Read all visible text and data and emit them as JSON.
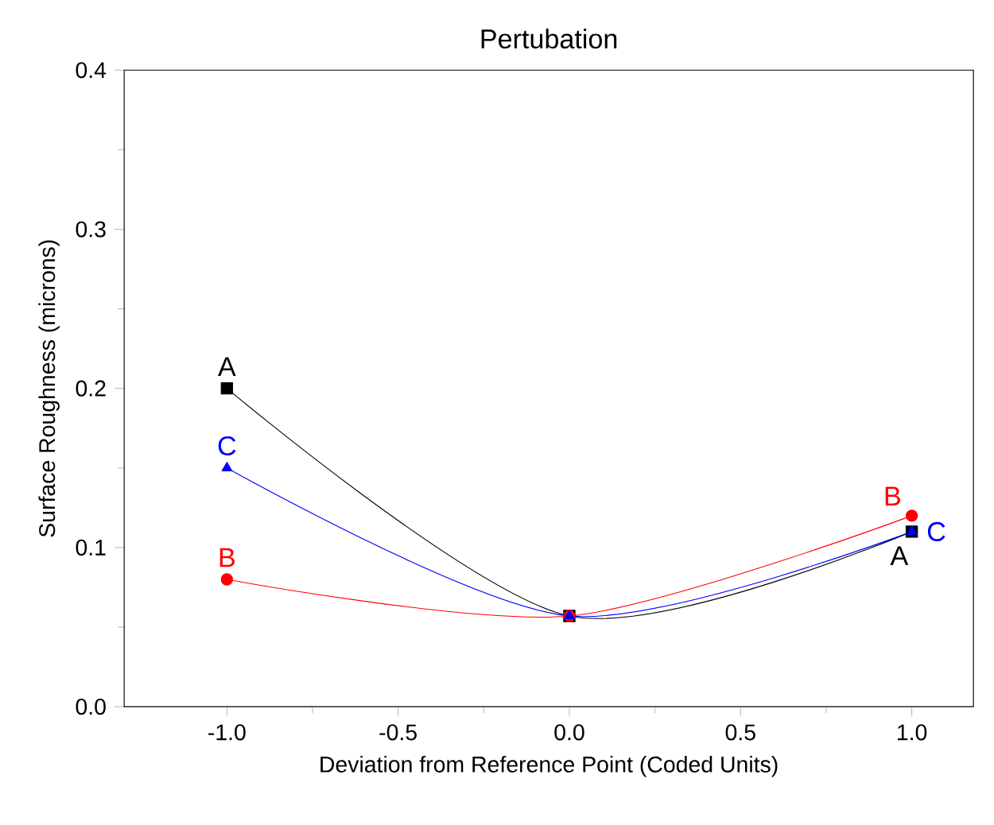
{
  "chart_data": {
    "type": "line",
    "title": "Pertubation",
    "xlabel": "Deviation from Reference Point (Coded Units)",
    "ylabel": "Surface Roughness (microns)",
    "x": [
      -1,
      0,
      1
    ],
    "series": [
      {
        "name": "A",
        "color": "#000000",
        "marker": "square",
        "values": [
          0.2,
          0.057,
          0.11
        ]
      },
      {
        "name": "B",
        "color": "#ff0000",
        "marker": "circle",
        "values": [
          0.08,
          0.057,
          0.12
        ]
      },
      {
        "name": "C",
        "color": "#0000ff",
        "marker": "triangle",
        "values": [
          0.15,
          0.057,
          0.11
        ]
      }
    ],
    "xlim": [
      -1.3,
      1.18
    ],
    "ylim": [
      0,
      0.4
    ],
    "xticks": [
      {
        "value": -1,
        "label": "-1.0"
      },
      {
        "value": -0.5,
        "label": "-0.5"
      },
      {
        "value": 0,
        "label": "0.0"
      },
      {
        "value": 0.5,
        "label": "0.5"
      },
      {
        "value": 1,
        "label": "1.0"
      }
    ],
    "yticks": [
      {
        "value": 0,
        "label": "0.0"
      },
      {
        "value": 0.1,
        "label": "0.1"
      },
      {
        "value": 0.2,
        "label": "0.2"
      },
      {
        "value": 0.3,
        "label": "0.3"
      },
      {
        "value": 0.4,
        "label": "0.4"
      }
    ],
    "grid": false
  }
}
